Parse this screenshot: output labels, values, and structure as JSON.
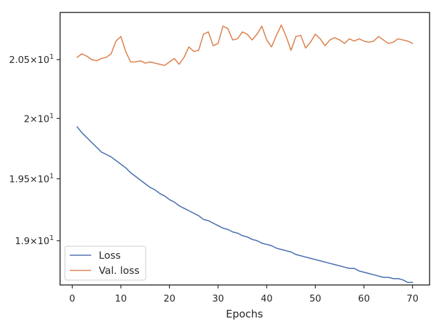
{
  "chart_data": {
    "type": "line",
    "xlabel": "Epochs",
    "ylabel": "",
    "title": "",
    "yscale": "log",
    "xlim": [
      -2.5,
      73.5
    ],
    "ylim": [
      18.65,
      20.91
    ],
    "grid": false,
    "legend_position": "lower-left",
    "x_ticks": [
      0,
      10,
      20,
      30,
      40,
      50,
      60,
      70
    ],
    "x_tick_labels": [
      "0",
      "10",
      "20",
      "30",
      "40",
      "50",
      "60",
      "70"
    ],
    "y_ticks": [
      {
        "value": 19.0,
        "label_base": "1.9",
        "label_exp": "1"
      },
      {
        "value": 19.5,
        "label_base": "1.95",
        "label_exp": "1"
      },
      {
        "value": 20.0,
        "label_base": "2",
        "label_exp": "1"
      },
      {
        "value": 20.5,
        "label_base": "2.05",
        "label_exp": "1"
      }
    ],
    "x": [
      1,
      2,
      3,
      4,
      5,
      6,
      7,
      8,
      9,
      10,
      11,
      12,
      13,
      14,
      15,
      16,
      17,
      18,
      19,
      20,
      21,
      22,
      23,
      24,
      25,
      26,
      27,
      28,
      29,
      30,
      31,
      32,
      33,
      34,
      35,
      36,
      37,
      38,
      39,
      40,
      41,
      42,
      43,
      44,
      45,
      46,
      47,
      48,
      49,
      50,
      51,
      52,
      53,
      54,
      55,
      56,
      57,
      58,
      59,
      60,
      61,
      62,
      63,
      64,
      65,
      66,
      67,
      68,
      69,
      70
    ],
    "series": [
      {
        "name": "Loss",
        "color": "#4c72b0",
        "values": [
          19.93,
          19.88,
          19.84,
          19.8,
          19.76,
          19.72,
          19.7,
          19.68,
          19.65,
          19.62,
          19.59,
          19.55,
          19.52,
          19.49,
          19.46,
          19.43,
          19.41,
          19.38,
          19.36,
          19.33,
          19.31,
          19.28,
          19.26,
          19.24,
          19.22,
          19.2,
          19.17,
          19.16,
          19.14,
          19.12,
          19.1,
          19.09,
          19.07,
          19.06,
          19.04,
          19.03,
          19.01,
          19.0,
          18.98,
          18.97,
          18.96,
          18.94,
          18.93,
          18.92,
          18.91,
          18.89,
          18.88,
          18.87,
          18.86,
          18.85,
          18.84,
          18.83,
          18.82,
          18.81,
          18.8,
          18.79,
          18.78,
          18.78,
          18.76,
          18.75,
          18.74,
          18.73,
          18.72,
          18.71,
          18.71,
          18.7,
          18.7,
          18.69,
          18.67,
          18.67
        ]
      },
      {
        "name": "Val. loss",
        "color": "#dd8452",
        "values": [
          20.52,
          20.55,
          20.53,
          20.5,
          20.49,
          20.51,
          20.52,
          20.55,
          20.66,
          20.7,
          20.57,
          20.48,
          20.48,
          20.49,
          20.47,
          20.48,
          20.47,
          20.46,
          20.45,
          20.48,
          20.51,
          20.46,
          20.52,
          20.61,
          20.57,
          20.58,
          20.72,
          20.74,
          20.62,
          20.64,
          20.79,
          20.77,
          20.67,
          20.68,
          20.74,
          20.72,
          20.67,
          20.72,
          20.79,
          20.67,
          20.61,
          20.71,
          20.8,
          20.7,
          20.58,
          20.7,
          20.71,
          20.6,
          20.65,
          20.72,
          20.68,
          20.62,
          20.67,
          20.69,
          20.67,
          20.64,
          20.68,
          20.66,
          20.68,
          20.66,
          20.65,
          20.66,
          20.7,
          20.67,
          20.64,
          20.65,
          20.68,
          20.67,
          20.66,
          20.64
        ]
      }
    ]
  }
}
